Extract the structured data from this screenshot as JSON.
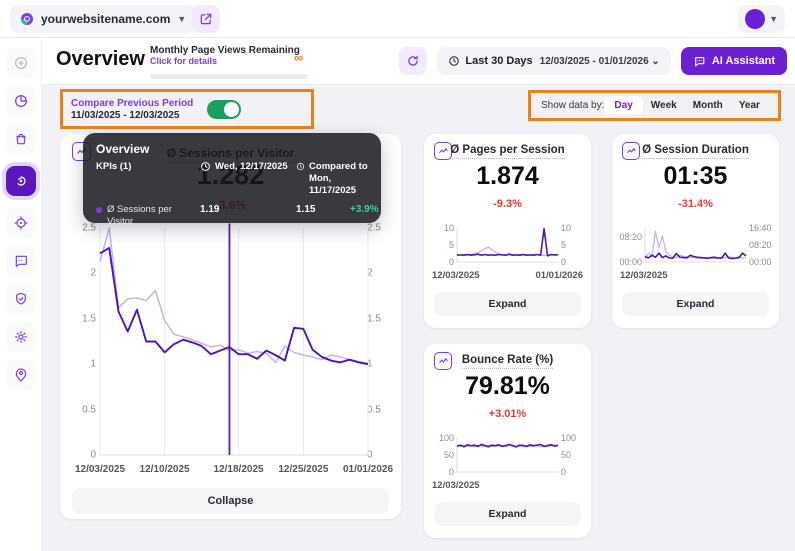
{
  "topbar": {
    "site_name": "yourwebsitename.com"
  },
  "header": {
    "title": "Overview",
    "quota": {
      "title": "Monthly Page Views Remaining",
      "link": "Click for details",
      "remaining": "∞"
    },
    "date_range": {
      "preset": "Last 30 Days",
      "range": "12/03/2025 - 01/01/2026 ⌄"
    },
    "ai_button": "AI Assistant"
  },
  "compare": {
    "label": "Compare Previous Period",
    "range": "11/03/2025 - 12/03/2025",
    "enabled": true
  },
  "granularity": {
    "label": "Show data by:",
    "options": [
      "Day",
      "Week",
      "Month",
      "Year"
    ],
    "selected": "Day"
  },
  "sidebar": {
    "items": [
      "sidebar-collapse",
      "pie-chart",
      "shopping-bag",
      "insights",
      "target",
      "chat",
      "shield-check",
      "settings-gear",
      "person-pin"
    ],
    "active": "insights"
  },
  "tooltip": {
    "title": "Overview",
    "kpis_label": "KPIs  (1)",
    "current_date": "Wed, 12/17/2025",
    "compared_prefix": "Compared to",
    "compared_date": "Mon, 11/17/2025",
    "row": {
      "name": "Ø Sessions per Visitor",
      "current": "1.19",
      "previous": "1.15",
      "change": "+3.9%"
    }
  },
  "main_card": {
    "title": "Ø Sessions per Visitor",
    "value": "1.282",
    "change": "-3.6%",
    "collapse": "Collapse"
  },
  "cards": [
    {
      "title": "Ø Pages per Session",
      "value": "1.874",
      "change": "-9.3%",
      "expand": "Expand"
    },
    {
      "title": "Ø Session Duration",
      "value": "01:35",
      "change": "-31.4%",
      "expand": "Expand"
    },
    {
      "title": "Bounce Rate (%)",
      "value": "79.81%",
      "change": "+3.01%",
      "expand": "Expand"
    }
  ],
  "colors": {
    "accent": "#6d1fd4",
    "line_current": "#4c13b8",
    "line_previous": "#c3b2ef",
    "positive": "#3fcf9a",
    "negative": "#e23c2e",
    "annotation_orange": "#ef8019",
    "toggle_on": "#17a05e"
  },
  "chart_data": [
    {
      "type": "line",
      "title": "Ø Sessions per Visitor",
      "x_range": [
        "12/03/2025",
        "01/01/2026"
      ],
      "ylim": [
        0,
        2.5
      ],
      "grid_x": [
        0,
        24.1,
        51.7,
        75.9,
        100
      ],
      "hover_x": 48.3,
      "hover_date": "Wed, 12/17/2025",
      "left_ticks": [
        {
          "label": "2.5",
          "pos": 0
        },
        {
          "label": "2",
          "pos": 20
        },
        {
          "label": "1.5",
          "pos": 40
        },
        {
          "label": "1",
          "pos": 60
        },
        {
          "label": "0.5",
          "pos": 80
        },
        {
          "label": "0",
          "pos": 100
        }
      ],
      "right_ticks": [
        {
          "label": "2.5",
          "pos": 0
        },
        {
          "label": "2",
          "pos": 20
        },
        {
          "label": "1.5",
          "pos": 40
        },
        {
          "label": "1",
          "pos": 60
        },
        {
          "label": "0.5",
          "pos": 80
        },
        {
          "label": "0",
          "pos": 100
        }
      ],
      "x_labels": [
        {
          "label": "12/03/2025",
          "pos": 0,
          "align": "center"
        },
        {
          "label": "12/10/2025",
          "pos": 24.1,
          "align": "center"
        },
        {
          "label": "12/18/2025",
          "pos": 51.7,
          "align": "center"
        },
        {
          "label": "12/25/2025",
          "pos": 75.9,
          "align": "center"
        },
        {
          "label": "01/01/2026",
          "pos": 100,
          "align": "center"
        }
      ],
      "series": [
        {
          "name": "previous period",
          "color": "#c3b2ef",
          "width": 1.5,
          "values": [
            2.13,
            2.5,
            1.62,
            1.72,
            1.73,
            1.7,
            1.81,
            1.48,
            1.33,
            1.3,
            1.27,
            1.23,
            1.19,
            1.21,
            1.15,
            1.16,
            1.12,
            1.14,
            1.12,
            1.02,
            1.2,
            1.13,
            1.1,
            1.08,
            1.05,
            1.1,
            1.08,
            1.05,
            1.03,
            1.01
          ]
        },
        {
          "name": "current period",
          "color": "#4c13b8",
          "width": 1.9,
          "values": [
            2.22,
            2.28,
            1.58,
            1.36,
            1.6,
            1.25,
            1.25,
            1.13,
            1.22,
            1.27,
            1.24,
            1.2,
            1.11,
            1.15,
            1.19,
            1.11,
            1.11,
            1.06,
            1.15,
            1.1,
            1.04,
            1.4,
            1.39,
            1.16,
            1.08,
            1.04,
            1.02,
            1.05,
            1.02,
            1.0
          ]
        }
      ]
    },
    {
      "type": "line",
      "title": "Ø Pages per Session",
      "ylim": [
        0,
        10
      ],
      "axis_left": true,
      "left_ticks": [
        {
          "label": "10",
          "pos": 0
        },
        {
          "label": "5",
          "pos": 50
        },
        {
          "label": "0",
          "pos": 100
        }
      ],
      "right_ticks": [
        {
          "label": "10",
          "pos": 0
        },
        {
          "label": "5",
          "pos": 50
        },
        {
          "label": "0",
          "pos": 100
        }
      ],
      "x_labels": [
        {
          "label": "12/03/2025",
          "pos": 0,
          "align": "left"
        },
        {
          "label": "01/01/2026",
          "pos": 100,
          "align": "right"
        }
      ],
      "series": [
        {
          "name": "previous period",
          "color": "#c3b2ef",
          "width": 1.3,
          "values": [
            2,
            2.1,
            2.2,
            2,
            2.3,
            2.5,
            2.8,
            3.2,
            3.8,
            4.4,
            3.6,
            2.9,
            2.4,
            2.2,
            2.1,
            2.2,
            2,
            2.1,
            2.2,
            2,
            2.1,
            2,
            2.2,
            2.1,
            2,
            1.9,
            2,
            2.1,
            2,
            2.1
          ]
        },
        {
          "name": "current period",
          "color": "#4c13b8",
          "width": 1.6,
          "values": [
            2,
            2.1,
            2,
            2.2,
            2,
            2.1,
            2.3,
            2,
            2.2,
            2,
            2.1,
            2,
            2.2,
            2.1,
            2,
            2.3,
            2,
            2.1,
            2,
            2.2,
            2,
            2.1,
            2,
            2.2,
            2,
            9.8,
            1.8,
            2.2,
            2.1,
            2.1
          ]
        }
      ]
    },
    {
      "type": "line",
      "title": "Ø Session Duration (seconds)",
      "ylim": [
        0,
        1000
      ],
      "axis_left": true,
      "left_ticks": [
        {
          "label": "08:20",
          "pos": 25
        },
        {
          "label": "00:00",
          "pos": 100
        }
      ],
      "right_ticks": [
        {
          "label": "16:40",
          "pos": 0
        },
        {
          "label": "08:20",
          "pos": 50
        },
        {
          "label": "00:00",
          "pos": 100
        }
      ],
      "x_labels": [
        {
          "label": "12/03/2025",
          "pos": 0,
          "align": "left"
        }
      ],
      "series": [
        {
          "name": "previous period",
          "color": "#c3b2ef",
          "width": 1.3,
          "values": [
            120,
            260,
            160,
            900,
            420,
            760,
            300,
            200,
            160,
            130,
            200,
            170,
            150,
            130,
            140,
            120,
            110,
            130,
            120,
            110,
            100,
            120,
            140,
            130,
            150,
            140,
            120,
            160,
            110,
            130
          ]
        },
        {
          "name": "current period",
          "color": "#4c13b8",
          "width": 1.6,
          "values": [
            160,
            120,
            200,
            140,
            260,
            130,
            180,
            120,
            110,
            250,
            140,
            130,
            120,
            200,
            160,
            140,
            130,
            120,
            110,
            130,
            140,
            120,
            110,
            260,
            120,
            100,
            110,
            130,
            260,
            180
          ]
        }
      ]
    },
    {
      "type": "line",
      "title": "Bounce Rate (%)",
      "ylim": [
        0,
        100
      ],
      "axis_left": true,
      "left_ticks": [
        {
          "label": "100",
          "pos": 0
        },
        {
          "label": "50",
          "pos": 50
        },
        {
          "label": "0",
          "pos": 100
        }
      ],
      "right_ticks": [
        {
          "label": "100",
          "pos": 0
        },
        {
          "label": "50",
          "pos": 50
        },
        {
          "label": "0",
          "pos": 100
        }
      ],
      "x_labels": [
        {
          "label": "12/03/2025",
          "pos": 0,
          "align": "left"
        }
      ],
      "series": [
        {
          "name": "previous period",
          "color": "#c3b2ef",
          "width": 1.3,
          "values": [
            74,
            76,
            79,
            75,
            78,
            74,
            79,
            77,
            75,
            79,
            74,
            78,
            76,
            79,
            75,
            78,
            80,
            75,
            77,
            74,
            78,
            75,
            79,
            77,
            74,
            78,
            75,
            77,
            79,
            75
          ]
        },
        {
          "name": "current period",
          "color": "#4c13b8",
          "width": 1.6,
          "values": [
            76,
            79,
            74,
            80,
            77,
            79,
            75,
            81,
            78,
            74,
            79,
            77,
            80,
            75,
            78,
            81,
            77,
            74,
            79,
            78,
            75,
            80,
            77,
            79,
            81,
            75,
            78,
            80,
            76,
            79
          ]
        }
      ]
    }
  ]
}
